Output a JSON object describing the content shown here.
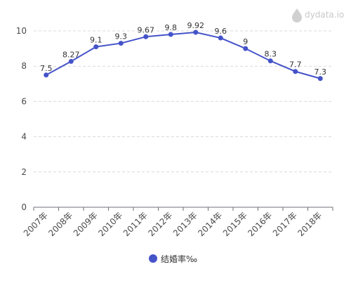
{
  "watermark": {
    "text": "dydata.io",
    "icon": "droplet-logo-icon"
  },
  "colors": {
    "series": "#4553c9",
    "grid": "#d9d9d9",
    "axis": "#6e7079",
    "watermark": "#c8c8c8"
  },
  "chart_data": {
    "type": "line",
    "title": "",
    "xlabel": "",
    "ylabel": "",
    "categories": [
      "2007年",
      "2008年",
      "2009年",
      "2010年",
      "2011年",
      "2012年",
      "2013年",
      "2014年",
      "2015年",
      "2016年",
      "2017年",
      "2018年"
    ],
    "series": [
      {
        "name": "结婚率‰",
        "values": [
          7.5,
          8.27,
          9.1,
          9.3,
          9.67,
          9.8,
          9.92,
          9.6,
          9,
          8.3,
          7.7,
          7.3
        ],
        "labels": [
          "7.5",
          "8.27",
          "9.1",
          "9.3",
          "9.67",
          "9.8",
          "9.92",
          "9.6",
          "9",
          "8.3",
          "7.7",
          "7.3"
        ]
      }
    ],
    "ylim": [
      0,
      10
    ],
    "yticks": [
      0,
      2,
      4,
      6,
      8,
      10
    ],
    "grid": true,
    "legend_position": "bottom-center"
  }
}
